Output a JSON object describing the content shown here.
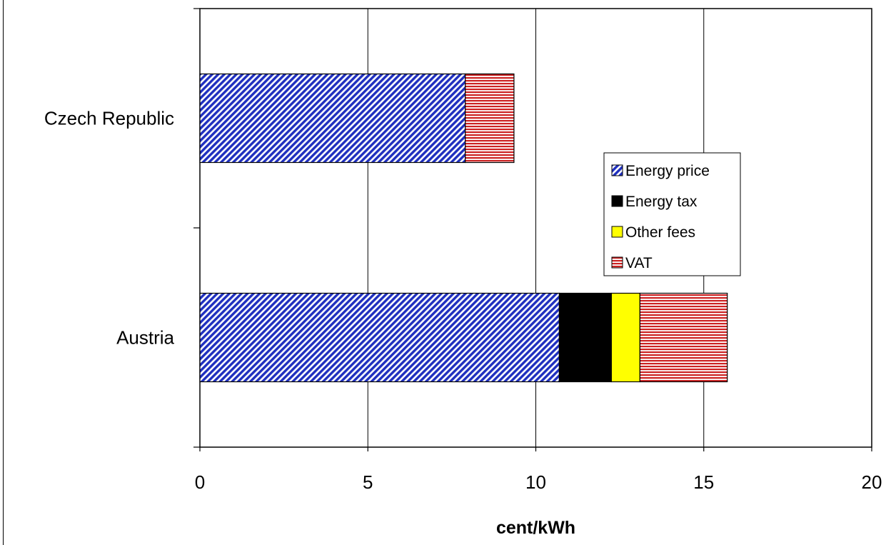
{
  "chart_data": {
    "type": "bar",
    "orientation": "horizontal",
    "stacked": true,
    "categories": [
      "Czech Republic",
      "Austria"
    ],
    "series": [
      {
        "name": "Energy price",
        "values": [
          7.9,
          10.7
        ],
        "color": "#1f2fbf",
        "pattern": "diagonal-hatch"
      },
      {
        "name": "Energy tax",
        "values": [
          0,
          1.55
        ],
        "color": "#000000",
        "pattern": "solid"
      },
      {
        "name": "Other fees",
        "values": [
          0,
          0.85
        ],
        "color": "#ffff00",
        "pattern": "solid"
      },
      {
        "name": "VAT",
        "values": [
          1.45,
          2.6
        ],
        "color": "#cc2222",
        "pattern": "horizontal-stripes"
      }
    ],
    "xlabel": "cent/kWh",
    "ylabel": "",
    "xlim": [
      0,
      20
    ],
    "xticks": [
      "0",
      "5",
      "10",
      "15",
      "20"
    ],
    "grid": "vertical",
    "legend_position": "middle-right"
  }
}
